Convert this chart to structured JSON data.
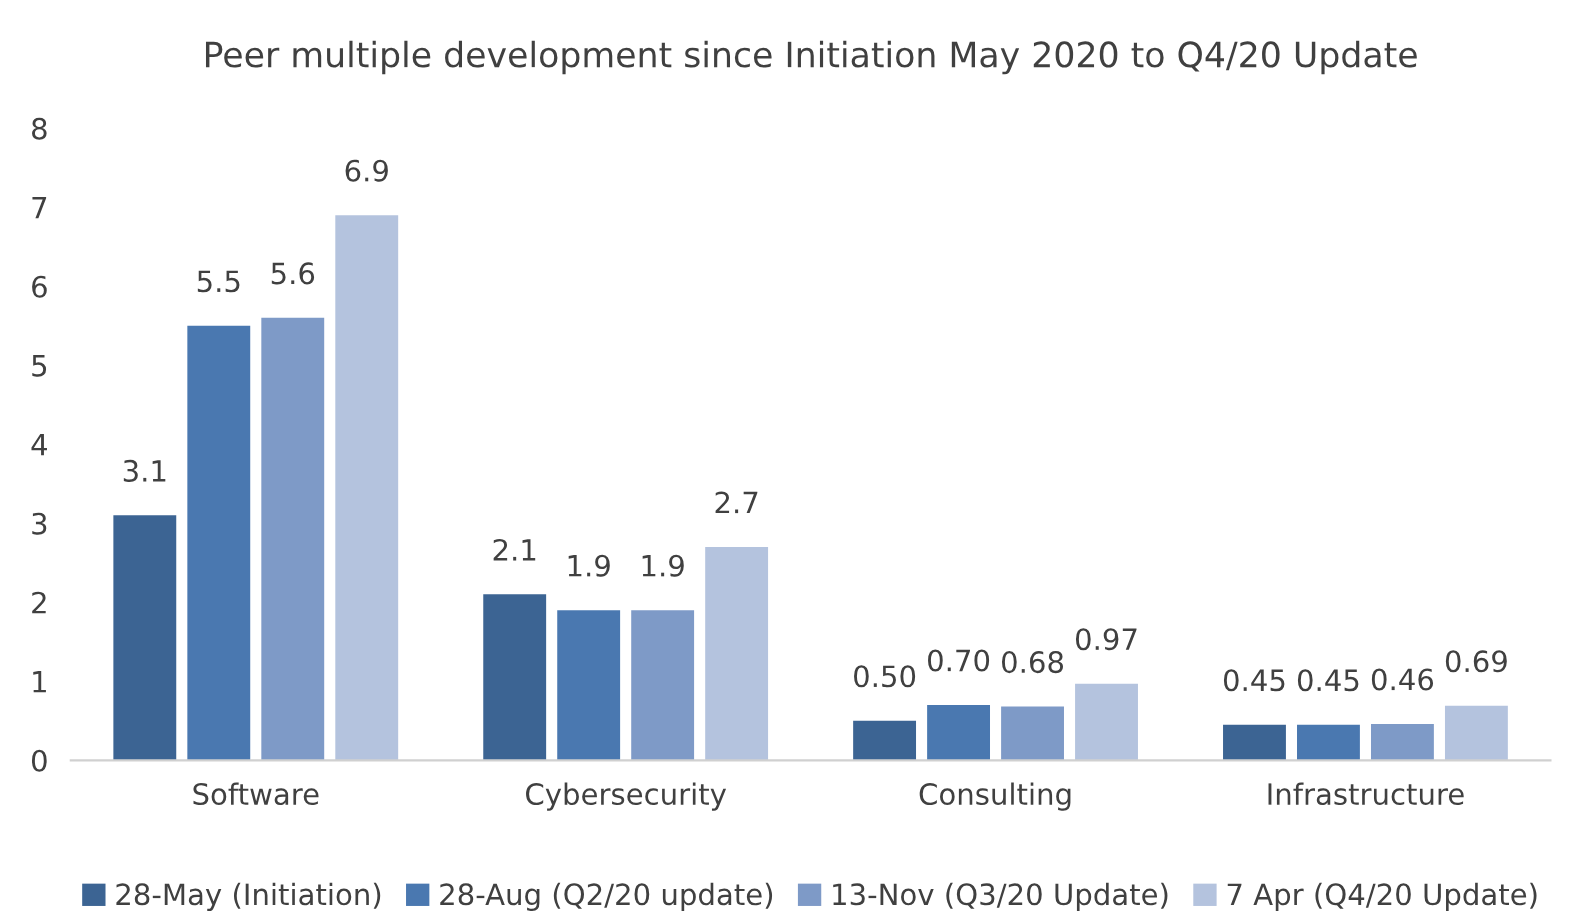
{
  "chart_data": {
    "type": "bar",
    "title": "Peer multiple development since Initiation May 2020 to Q4/20 Update",
    "categories": [
      "Software",
      "Cybersecurity",
      "Consulting",
      "Infrastructure"
    ],
    "series": [
      {
        "name": "28-May (Initiation)",
        "color": "#3c6493",
        "values": [
          3.1,
          2.1,
          0.5,
          0.45
        ],
        "value_labels": [
          "3.1",
          "2.1",
          "0.50",
          "0.45"
        ]
      },
      {
        "name": "28-Aug (Q2/20 update)",
        "color": "#4a78b0",
        "values": [
          5.5,
          1.9,
          0.7,
          0.45
        ],
        "value_labels": [
          "5.5",
          "1.9",
          "0.70",
          "0.45"
        ]
      },
      {
        "name": "13-Nov (Q3/20 Update)",
        "color": "#7e9ac7",
        "values": [
          5.6,
          1.9,
          0.68,
          0.46
        ],
        "value_labels": [
          "5.6",
          "1.9",
          "0.68",
          "0.46"
        ]
      },
      {
        "name": "7 Apr (Q4/20 Update)",
        "color": "#b4c3de",
        "values": [
          6.9,
          2.7,
          0.97,
          0.69
        ],
        "value_labels": [
          "6.9",
          "2.7",
          "0.97",
          "0.69"
        ]
      }
    ],
    "ylim": [
      0,
      8
    ],
    "yticks": [
      0,
      1,
      2,
      3,
      4,
      5,
      6,
      7,
      8
    ],
    "grid": false,
    "legend": "bottom"
  }
}
